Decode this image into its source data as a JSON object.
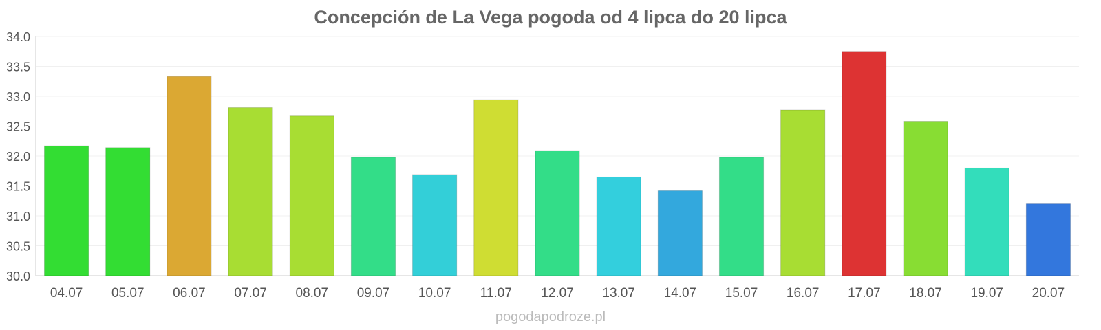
{
  "chart_data": {
    "type": "bar",
    "title": "Concepción de La Vega pogoda od 4 lipca do 20 lipca",
    "xlabel": "",
    "ylabel": "",
    "ylim": [
      30.0,
      34.0
    ],
    "yticks": [
      "30.0",
      "30.5",
      "31.0",
      "31.5",
      "32.0",
      "32.5",
      "33.0",
      "33.5",
      "34.0"
    ],
    "grid": true,
    "categories": [
      "04.07",
      "05.07",
      "06.07",
      "07.07",
      "08.07",
      "09.07",
      "10.07",
      "11.07",
      "12.07",
      "13.07",
      "14.07",
      "15.07",
      "16.07",
      "17.07",
      "18.07",
      "19.07",
      "20.07"
    ],
    "values": [
      32.17,
      32.14,
      33.33,
      32.81,
      32.67,
      31.98,
      31.69,
      32.94,
      32.09,
      31.65,
      31.42,
      31.98,
      32.77,
      33.75,
      32.58,
      31.8,
      31.2
    ],
    "colors": [
      "#33dd33",
      "#33dd33",
      "#dba833",
      "#a8dd33",
      "#a8dd33",
      "#33dd88",
      "#33cfd8",
      "#cfdd33",
      "#33dd88",
      "#33cfdd",
      "#33a8dd",
      "#33dd88",
      "#a8dd33",
      "#dd3333",
      "#88dd33",
      "#33ddbb",
      "#3377dd"
    ]
  },
  "watermark": "pogodapodroze.pl"
}
